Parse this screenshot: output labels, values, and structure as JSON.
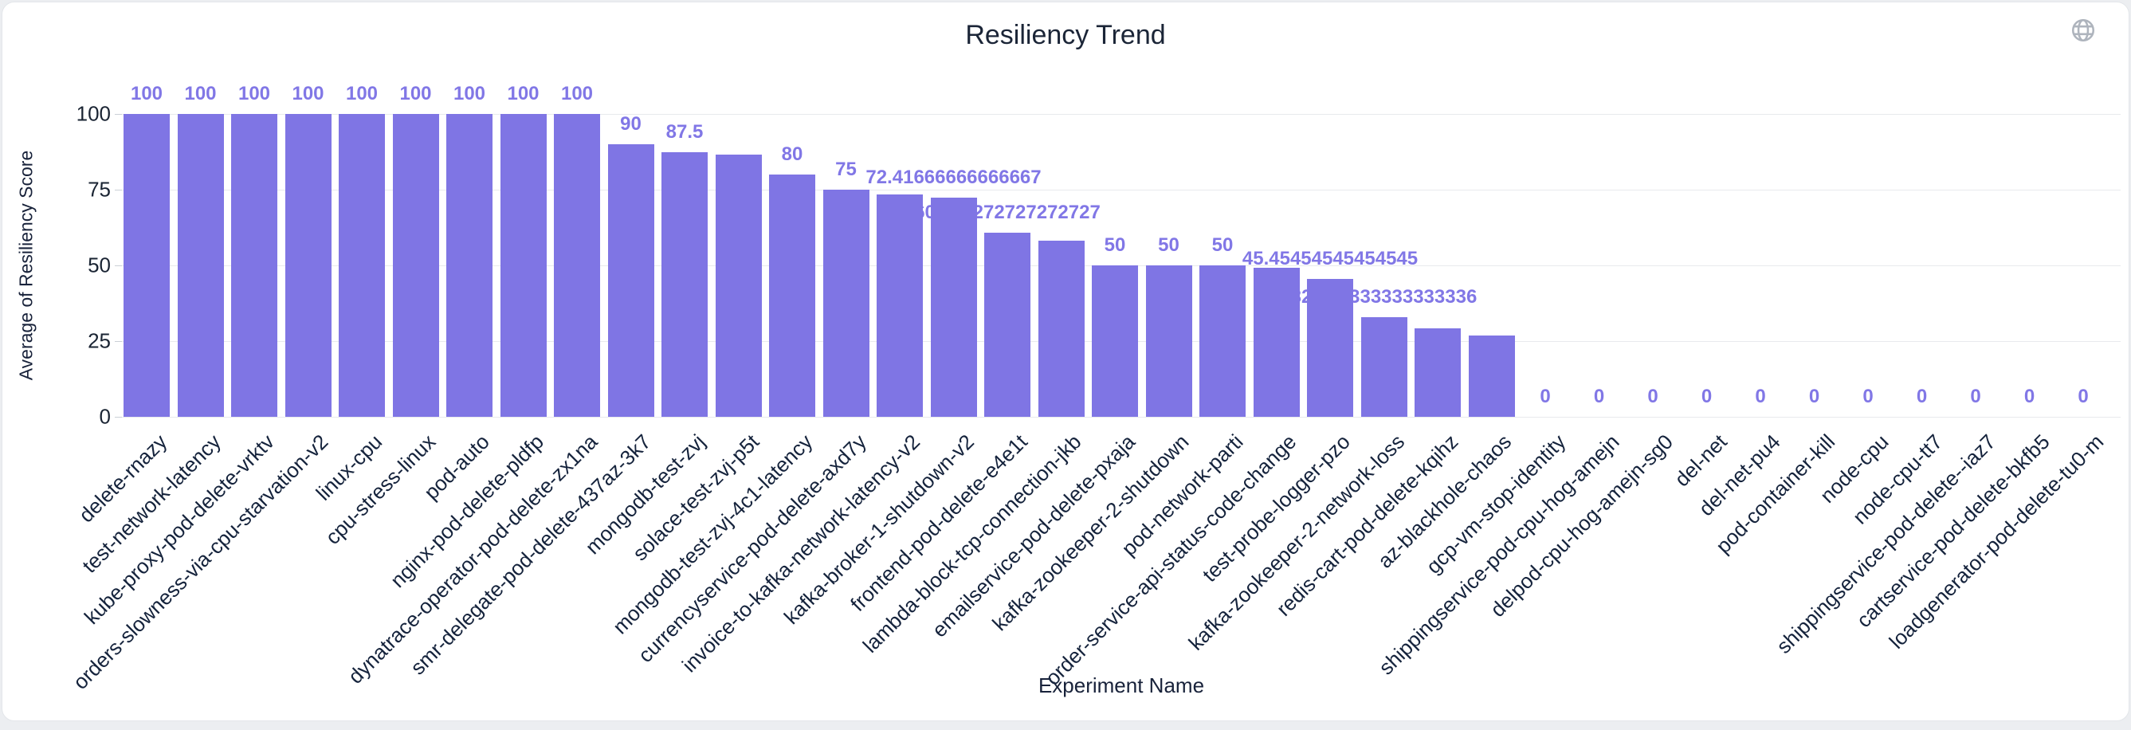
{
  "card": {
    "title": "Resiliency Trend",
    "corner_icon": "globe-icon",
    "colors": {
      "bar": "#7f75e4",
      "value_label": "#8177e6",
      "axis_text": "#18223a",
      "tick_text": "#1a2433",
      "grid": "#e8eaed",
      "title_text": "#1b2537",
      "icon": "#aeb4bd",
      "page_bg": "#eceef1",
      "card_bg": "#ffffff"
    }
  },
  "chart_data": {
    "type": "bar",
    "title": "Resiliency Trend",
    "xlabel": "Experiment Name",
    "ylabel": "Average of Resiliency Score",
    "ylim": [
      0,
      100
    ],
    "y_ticks": [
      0,
      25,
      50,
      75,
      100
    ],
    "grid": "horizontal",
    "legend": "none",
    "categories": [
      "delete-rnazy",
      "test-network-latency",
      "kube-proxy-pod-delete-vrktv",
      "orders-slowness-via-cpu-starvation-v2",
      "linux-cpu",
      "cpu-stress-linux",
      "pod-auto",
      "nginx-pod-delete-pldfp",
      "dynatrace-operator-pod-delete-zx1na",
      "smr-delegate-pod-delete-437az-3k7",
      "mongodb-test-zvj",
      "solace-test-zvj-p5t",
      "mongodb-test-zvj-4c1-latency",
      "currencyservice-pod-delete-axd7y",
      "invoice-to-kafka-network-latency-v2",
      "kafka-broker-1-shutdown-v2",
      "frontend-pod-delete-e4e1t",
      "lambda-block-tcp-connection-jkb",
      "emailservice-pod-delete-pxaja",
      "kafka-zookeeper-2-shutdown",
      "pod-network-parti",
      "order-service-api-status-code-change",
      "test-probe-logger-pzo",
      "kafka-zookeeper-2-network-loss",
      "redis-cart-pod-delete-kqihz",
      "az-blackhole-chaos",
      "gcp-vm-stop-identity",
      "shippingservice-pod-cpu-hog-amejn",
      "delpod-cpu-hog-amejn-sg0",
      "del-net",
      "del-net-pu4",
      "pod-container-kill",
      "node-cpu",
      "node-cpu-tt7",
      "shippingservice-pod-delete--iaz7",
      "cartservice-pod-delete-bkfb5",
      "loadgenerator-pod-delete-tu0-m"
    ],
    "values": [
      100,
      100,
      100,
      100,
      100,
      100,
      100,
      100,
      100,
      90,
      87.5,
      86.66666666666667,
      80,
      75,
      73.33333333333333,
      72.41666666666667,
      60.72727272727273,
      58.18181818181818,
      50,
      50,
      50,
      49.09090909090909,
      45.45454545454545,
      32.833333333333336,
      29.166666666666668,
      26.818181818181817,
      0,
      0,
      0,
      0,
      0,
      0,
      0,
      0,
      0,
      0,
      0
    ],
    "bar_labels": [
      "100",
      "100",
      "100",
      "100",
      "100",
      "100",
      "100",
      "100",
      "100",
      "90",
      "87.5",
      "",
      "80",
      "75",
      "",
      "72.41666666666667",
      "60.727272727272727",
      "",
      "50",
      "50",
      "50",
      "",
      "45.45454545454545",
      "32.833333333333336",
      "",
      "",
      "0",
      "0",
      "0",
      "0",
      "0",
      "0",
      "0",
      "0",
      "0",
      "0",
      "0"
    ]
  }
}
